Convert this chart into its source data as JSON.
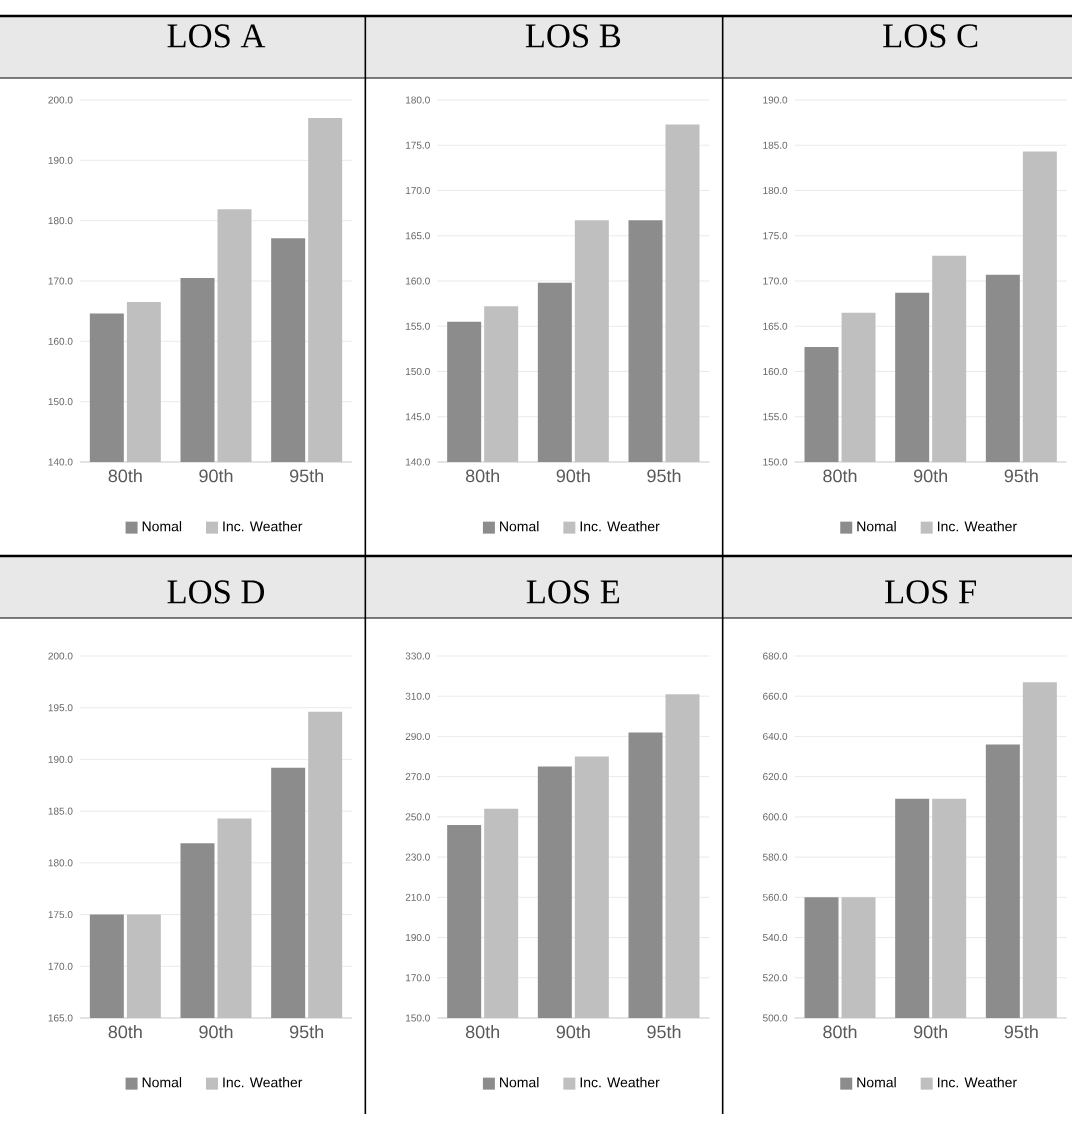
{
  "chart_data": [
    {
      "type": "bar",
      "title": "LOS  A",
      "categories": [
        "80th",
        "90th",
        "95th"
      ],
      "series": [
        {
          "name": "Nomal",
          "color": "#8c8c8c",
          "values": [
            164.6,
            170.5,
            177.1
          ]
        },
        {
          "name": "Inc. Weather",
          "color": "#bfbfbf",
          "values": [
            166.5,
            181.9,
            197.0
          ]
        }
      ],
      "ylim": [
        140,
        200
      ],
      "yticks": [
        {
          "value": 140,
          "label": "140.0"
        },
        {
          "value": 150,
          "label": "150.0"
        },
        {
          "value": 160,
          "label": "160.0"
        },
        {
          "value": 170,
          "label": "170.0"
        },
        {
          "value": 180,
          "label": "180.0"
        },
        {
          "value": 190,
          "label": "190.0"
        },
        {
          "value": 200,
          "label": "200.0"
        }
      ],
      "grid": "y",
      "legend": "bottom"
    },
    {
      "type": "bar",
      "title": "LOS  B",
      "categories": [
        "80th",
        "90th",
        "95th"
      ],
      "series": [
        {
          "name": "Nomal",
          "color": "#8c8c8c",
          "values": [
            155.5,
            159.8,
            166.7
          ]
        },
        {
          "name": "Inc. Weather",
          "color": "#bfbfbf",
          "values": [
            157.2,
            166.7,
            177.3
          ]
        }
      ],
      "ylim": [
        140,
        180
      ],
      "yticks": [
        {
          "value": 140,
          "label": "140.0"
        },
        {
          "value": 145,
          "label": "145.0"
        },
        {
          "value": 150,
          "label": "150.0"
        },
        {
          "value": 155,
          "label": "155.0"
        },
        {
          "value": 160,
          "label": "160.0"
        },
        {
          "value": 165,
          "label": "165.0"
        },
        {
          "value": 170,
          "label": "170.0"
        },
        {
          "value": 175,
          "label": "175.0"
        },
        {
          "value": 180,
          "label": "180.0"
        }
      ],
      "grid": "y",
      "legend": "bottom"
    },
    {
      "type": "bar",
      "title": "LOS  C",
      "categories": [
        "80th",
        "90th",
        "95th"
      ],
      "series": [
        {
          "name": "Nomal",
          "color": "#8c8c8c",
          "values": [
            162.7,
            168.7,
            170.7
          ]
        },
        {
          "name": "Inc. Weather",
          "color": "#bfbfbf",
          "values": [
            166.5,
            172.8,
            184.3
          ]
        }
      ],
      "ylim": [
        150,
        190
      ],
      "yticks": [
        {
          "value": 150,
          "label": "150.0"
        },
        {
          "value": 155,
          "label": "155.0"
        },
        {
          "value": 160,
          "label": "160.0"
        },
        {
          "value": 165,
          "label": "165.0"
        },
        {
          "value": 170,
          "label": "170.0"
        },
        {
          "value": 175,
          "label": "175.0"
        },
        {
          "value": 180,
          "label": "180.0"
        },
        {
          "value": 185,
          "label": "185.0"
        },
        {
          "value": 190,
          "label": "190.0"
        }
      ],
      "grid": "y",
      "legend": "bottom"
    },
    {
      "type": "bar",
      "title": "LOS  D",
      "categories": [
        "80th",
        "90th",
        "95th"
      ],
      "series": [
        {
          "name": "Nomal",
          "color": "#8c8c8c",
          "values": [
            175.0,
            181.9,
            189.2
          ]
        },
        {
          "name": "Inc. Weather",
          "color": "#bfbfbf",
          "values": [
            175.0,
            184.3,
            194.6
          ]
        }
      ],
      "ylim": [
        165,
        200
      ],
      "yticks": [
        {
          "value": 165,
          "label": "165.0"
        },
        {
          "value": 170,
          "label": "170.0"
        },
        {
          "value": 175,
          "label": "175.0"
        },
        {
          "value": 180,
          "label": "180.0"
        },
        {
          "value": 185,
          "label": "185.0"
        },
        {
          "value": 190,
          "label": "190.0"
        },
        {
          "value": 195,
          "label": "195.0"
        },
        {
          "value": 200,
          "label": "200.0"
        }
      ],
      "grid": "y",
      "legend": "bottom"
    },
    {
      "type": "bar",
      "title": "LOS  E",
      "categories": [
        "80th",
        "90th",
        "95th"
      ],
      "series": [
        {
          "name": "Nomal",
          "color": "#8c8c8c",
          "values": [
            246,
            275,
            292
          ]
        },
        {
          "name": "Inc. Weather",
          "color": "#bfbfbf",
          "values": [
            254,
            280,
            311
          ]
        }
      ],
      "ylim": [
        150,
        330
      ],
      "yticks": [
        {
          "value": 150,
          "label": "150.0"
        },
        {
          "value": 170,
          "label": "170.0"
        },
        {
          "value": 190,
          "label": "190.0"
        },
        {
          "value": 210,
          "label": "210.0"
        },
        {
          "value": 230,
          "label": "230.0"
        },
        {
          "value": 250,
          "label": "250.0"
        },
        {
          "value": 270,
          "label": "270.0"
        },
        {
          "value": 290,
          "label": "290.0"
        },
        {
          "value": 310,
          "label": "310.0"
        },
        {
          "value": 330,
          "label": "330.0"
        }
      ],
      "grid": "y",
      "legend": "bottom"
    },
    {
      "type": "bar",
      "title": "LOS  F",
      "categories": [
        "80th",
        "90th",
        "95th"
      ],
      "series": [
        {
          "name": "Nomal",
          "color": "#8c8c8c",
          "values": [
            560,
            609,
            636
          ]
        },
        {
          "name": "Inc. Weather",
          "color": "#bfbfbf",
          "values": [
            560,
            609,
            667
          ]
        }
      ],
      "ylim": [
        500,
        680
      ],
      "yticks": [
        {
          "value": 500,
          "label": "500.0"
        },
        {
          "value": 520,
          "label": "520.0"
        },
        {
          "value": 540,
          "label": "540.0"
        },
        {
          "value": 560,
          "label": "560.0"
        },
        {
          "value": 580,
          "label": "580.0"
        },
        {
          "value": 600,
          "label": "600.0"
        },
        {
          "value": 620,
          "label": "620.0"
        },
        {
          "value": 640,
          "label": "640.0"
        },
        {
          "value": 660,
          "label": "660.0"
        },
        {
          "value": 680,
          "label": "680.0"
        }
      ],
      "grid": "y",
      "legend": "bottom"
    }
  ]
}
